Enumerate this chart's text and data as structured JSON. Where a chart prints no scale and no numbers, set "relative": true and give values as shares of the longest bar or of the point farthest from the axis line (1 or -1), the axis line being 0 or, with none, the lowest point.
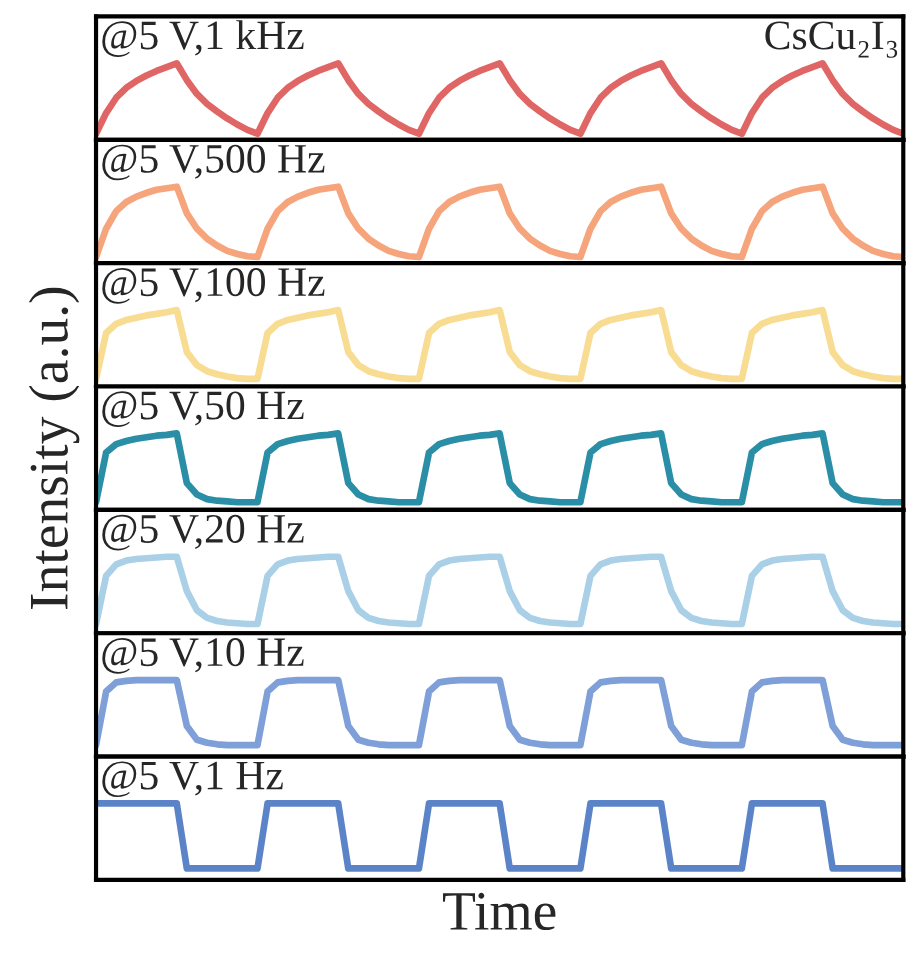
{
  "chart_data": [
    {
      "type": "line",
      "relative": true,
      "tick_labels": false,
      "annotations": [
        "@5 V,1 kHz",
        "CsCu₂I₃"
      ],
      "categories": [
        null,
        null,
        null,
        null,
        null,
        null,
        null,
        null,
        null,
        null,
        null,
        null,
        null,
        null,
        null,
        null,
        null,
        null,
        null,
        null,
        null,
        null,
        null,
        null,
        null,
        null,
        null,
        null,
        null,
        null,
        null,
        null,
        null,
        null,
        null,
        null,
        null,
        null,
        null,
        null,
        null,
        null,
        null,
        null,
        null,
        null,
        null,
        null,
        null,
        null,
        null,
        null,
        null,
        null,
        null,
        null,
        null,
        null,
        null,
        null,
        null,
        null,
        null,
        null,
        null,
        null,
        null,
        null,
        null,
        null,
        null,
        null,
        null,
        null,
        null,
        null,
        null,
        null,
        null,
        null,
        null
      ],
      "series": [
        {
          "color": "#e06666",
          "values": [
            0.08,
            0.35,
            0.55,
            0.68,
            0.77,
            0.84,
            0.9,
            0.95,
            1.0,
            0.78,
            0.6,
            0.47,
            0.37,
            0.28,
            0.2,
            0.13,
            0.08,
            0.35,
            0.55,
            0.68,
            0.77,
            0.84,
            0.9,
            0.95,
            1.0,
            0.78,
            0.6,
            0.47,
            0.37,
            0.28,
            0.2,
            0.13,
            0.08,
            0.35,
            0.55,
            0.68,
            0.77,
            0.84,
            0.9,
            0.95,
            1.0,
            0.78,
            0.6,
            0.47,
            0.37,
            0.28,
            0.2,
            0.13,
            0.08,
            0.35,
            0.55,
            0.68,
            0.77,
            0.84,
            0.9,
            0.95,
            1.0,
            0.78,
            0.6,
            0.47,
            0.37,
            0.28,
            0.2,
            0.13,
            0.08,
            0.35,
            0.55,
            0.68,
            0.77,
            0.84,
            0.9,
            0.95,
            1.0,
            0.78,
            0.6,
            0.47,
            0.37,
            0.28,
            0.2,
            0.13,
            0.08
          ]
        }
      ]
    },
    {
      "type": "line",
      "relative": true,
      "tick_labels": false,
      "annotations": [
        "@5 V,500 Hz"
      ],
      "categories": [
        null,
        null,
        null,
        null,
        null,
        null,
        null,
        null,
        null,
        null,
        null,
        null,
        null,
        null,
        null,
        null,
        null,
        null,
        null,
        null,
        null,
        null,
        null,
        null,
        null,
        null,
        null,
        null,
        null,
        null,
        null,
        null,
        null,
        null,
        null,
        null,
        null,
        null,
        null,
        null,
        null,
        null,
        null,
        null,
        null,
        null,
        null,
        null,
        null,
        null,
        null,
        null,
        null,
        null,
        null,
        null,
        null,
        null,
        null,
        null,
        null,
        null,
        null,
        null,
        null,
        null,
        null,
        null,
        null,
        null,
        null,
        null,
        null,
        null,
        null,
        null,
        null,
        null,
        null,
        null,
        null
      ],
      "series": [
        {
          "color": "#f5a47c",
          "values": [
            0.08,
            0.45,
            0.68,
            0.8,
            0.87,
            0.92,
            0.96,
            0.98,
            1.0,
            0.65,
            0.45,
            0.32,
            0.23,
            0.16,
            0.12,
            0.09,
            0.08,
            0.45,
            0.68,
            0.8,
            0.87,
            0.92,
            0.96,
            0.98,
            1.0,
            0.65,
            0.45,
            0.32,
            0.23,
            0.16,
            0.12,
            0.09,
            0.08,
            0.45,
            0.68,
            0.8,
            0.87,
            0.92,
            0.96,
            0.98,
            1.0,
            0.65,
            0.45,
            0.32,
            0.23,
            0.16,
            0.12,
            0.09,
            0.08,
            0.45,
            0.68,
            0.8,
            0.87,
            0.92,
            0.96,
            0.98,
            1.0,
            0.65,
            0.45,
            0.32,
            0.23,
            0.16,
            0.12,
            0.09,
            0.08,
            0.45,
            0.68,
            0.8,
            0.87,
            0.92,
            0.96,
            0.98,
            1.0,
            0.65,
            0.45,
            0.32,
            0.23,
            0.16,
            0.12,
            0.09,
            0.08
          ]
        }
      ]
    },
    {
      "type": "line",
      "relative": true,
      "tick_labels": false,
      "annotations": [
        "@5 V,100 Hz"
      ],
      "categories": [
        null,
        null,
        null,
        null,
        null,
        null,
        null,
        null,
        null,
        null,
        null,
        null,
        null,
        null,
        null,
        null,
        null,
        null,
        null,
        null,
        null,
        null,
        null,
        null,
        null,
        null,
        null,
        null,
        null,
        null,
        null,
        null,
        null,
        null,
        null,
        null,
        null,
        null,
        null,
        null,
        null,
        null,
        null,
        null,
        null,
        null,
        null,
        null,
        null,
        null,
        null,
        null,
        null,
        null,
        null,
        null,
        null,
        null,
        null,
        null,
        null,
        null,
        null,
        null,
        null,
        null,
        null,
        null,
        null,
        null,
        null,
        null,
        null,
        null,
        null,
        null,
        null,
        null,
        null,
        null,
        null
      ],
      "series": [
        {
          "color": "#f8dc92",
          "values": [
            0.1,
            0.7,
            0.82,
            0.87,
            0.9,
            0.93,
            0.95,
            0.97,
            1.0,
            0.45,
            0.28,
            0.2,
            0.16,
            0.13,
            0.11,
            0.1,
            0.1,
            0.7,
            0.82,
            0.87,
            0.9,
            0.93,
            0.95,
            0.97,
            1.0,
            0.45,
            0.28,
            0.2,
            0.16,
            0.13,
            0.11,
            0.1,
            0.1,
            0.7,
            0.82,
            0.87,
            0.9,
            0.93,
            0.95,
            0.97,
            1.0,
            0.45,
            0.28,
            0.2,
            0.16,
            0.13,
            0.11,
            0.1,
            0.1,
            0.7,
            0.82,
            0.87,
            0.9,
            0.93,
            0.95,
            0.97,
            1.0,
            0.45,
            0.28,
            0.2,
            0.16,
            0.13,
            0.11,
            0.1,
            0.1,
            0.7,
            0.82,
            0.87,
            0.9,
            0.93,
            0.95,
            0.97,
            1.0,
            0.45,
            0.28,
            0.2,
            0.16,
            0.13,
            0.11,
            0.1,
            0.1
          ]
        }
      ]
    },
    {
      "type": "line",
      "relative": true,
      "tick_labels": false,
      "annotations": [
        "@5 V,50 Hz"
      ],
      "categories": [
        null,
        null,
        null,
        null,
        null,
        null,
        null,
        null,
        null,
        null,
        null,
        null,
        null,
        null,
        null,
        null,
        null,
        null,
        null,
        null,
        null,
        null,
        null,
        null,
        null,
        null,
        null,
        null,
        null,
        null,
        null,
        null,
        null,
        null,
        null,
        null,
        null,
        null,
        null,
        null,
        null,
        null,
        null,
        null,
        null,
        null,
        null,
        null,
        null,
        null,
        null,
        null,
        null,
        null,
        null,
        null,
        null,
        null,
        null,
        null,
        null,
        null,
        null,
        null,
        null,
        null,
        null,
        null,
        null,
        null,
        null,
        null,
        null,
        null,
        null,
        null,
        null,
        null,
        null,
        null,
        null
      ],
      "series": [
        {
          "color": "#2a8fa6",
          "values": [
            0.1,
            0.75,
            0.86,
            0.9,
            0.93,
            0.95,
            0.97,
            0.98,
            1.0,
            0.35,
            0.2,
            0.14,
            0.12,
            0.11,
            0.1,
            0.1,
            0.1,
            0.75,
            0.86,
            0.9,
            0.93,
            0.95,
            0.97,
            0.98,
            1.0,
            0.35,
            0.2,
            0.14,
            0.12,
            0.11,
            0.1,
            0.1,
            0.1,
            0.75,
            0.86,
            0.9,
            0.93,
            0.95,
            0.97,
            0.98,
            1.0,
            0.35,
            0.2,
            0.14,
            0.12,
            0.11,
            0.1,
            0.1,
            0.1,
            0.75,
            0.86,
            0.9,
            0.93,
            0.95,
            0.97,
            0.98,
            1.0,
            0.35,
            0.2,
            0.14,
            0.12,
            0.11,
            0.1,
            0.1,
            0.1,
            0.75,
            0.86,
            0.9,
            0.93,
            0.95,
            0.97,
            0.98,
            1.0,
            0.35,
            0.2,
            0.14,
            0.12,
            0.11,
            0.1,
            0.1,
            0.1
          ]
        }
      ],
      "ylabel": "Intensity (a.u.)"
    },
    {
      "type": "line",
      "relative": true,
      "tick_labels": false,
      "annotations": [
        "@5 V,20 Hz"
      ],
      "categories": [
        null,
        null,
        null,
        null,
        null,
        null,
        null,
        null,
        null,
        null,
        null,
        null,
        null,
        null,
        null,
        null,
        null,
        null,
        null,
        null,
        null,
        null,
        null,
        null,
        null,
        null,
        null,
        null,
        null,
        null,
        null,
        null,
        null,
        null,
        null,
        null,
        null,
        null,
        null,
        null,
        null,
        null,
        null,
        null,
        null,
        null,
        null,
        null,
        null,
        null,
        null,
        null,
        null,
        null,
        null,
        null,
        null,
        null,
        null,
        null,
        null,
        null,
        null,
        null,
        null,
        null,
        null,
        null,
        null,
        null,
        null,
        null,
        null,
        null,
        null,
        null,
        null,
        null,
        null,
        null,
        null
      ],
      "series": [
        {
          "color": "#a9d0e6",
          "values": [
            0.12,
            0.75,
            0.9,
            0.95,
            0.97,
            0.98,
            0.99,
            1.0,
            1.0,
            0.55,
            0.3,
            0.2,
            0.16,
            0.14,
            0.13,
            0.12,
            0.12,
            0.75,
            0.9,
            0.95,
            0.97,
            0.98,
            0.99,
            1.0,
            1.0,
            0.55,
            0.3,
            0.2,
            0.16,
            0.14,
            0.13,
            0.12,
            0.12,
            0.75,
            0.9,
            0.95,
            0.97,
            0.98,
            0.99,
            1.0,
            1.0,
            0.55,
            0.3,
            0.2,
            0.16,
            0.14,
            0.13,
            0.12,
            0.12,
            0.75,
            0.9,
            0.95,
            0.97,
            0.98,
            0.99,
            1.0,
            1.0,
            0.55,
            0.3,
            0.2,
            0.16,
            0.14,
            0.13,
            0.12,
            0.12,
            0.75,
            0.9,
            0.95,
            0.97,
            0.98,
            0.99,
            1.0,
            1.0,
            0.55,
            0.3,
            0.2,
            0.16,
            0.14,
            0.13,
            0.12,
            0.12
          ]
        }
      ]
    },
    {
      "type": "line",
      "relative": true,
      "tick_labels": false,
      "annotations": [
        "@5 V,10 Hz"
      ],
      "categories": [
        null,
        null,
        null,
        null,
        null,
        null,
        null,
        null,
        null,
        null,
        null,
        null,
        null,
        null,
        null,
        null,
        null,
        null,
        null,
        null,
        null,
        null,
        null,
        null,
        null,
        null,
        null,
        null,
        null,
        null,
        null,
        null,
        null,
        null,
        null,
        null,
        null,
        null,
        null,
        null,
        null,
        null,
        null,
        null,
        null,
        null,
        null,
        null,
        null,
        null,
        null,
        null,
        null,
        null,
        null,
        null,
        null,
        null,
        null,
        null,
        null,
        null,
        null,
        null,
        null,
        null,
        null,
        null,
        null,
        null,
        null,
        null,
        null,
        null,
        null,
        null,
        null,
        null,
        null,
        null,
        null
      ],
      "series": [
        {
          "color": "#7f9fd8",
          "values": [
            0.15,
            0.85,
            0.97,
            0.99,
            1.0,
            1.0,
            1.0,
            1.0,
            1.0,
            0.4,
            0.22,
            0.18,
            0.16,
            0.15,
            0.15,
            0.15,
            0.15,
            0.85,
            0.97,
            0.99,
            1.0,
            1.0,
            1.0,
            1.0,
            1.0,
            0.4,
            0.22,
            0.18,
            0.16,
            0.15,
            0.15,
            0.15,
            0.15,
            0.85,
            0.97,
            0.99,
            1.0,
            1.0,
            1.0,
            1.0,
            1.0,
            0.4,
            0.22,
            0.18,
            0.16,
            0.15,
            0.15,
            0.15,
            0.15,
            0.85,
            0.97,
            0.99,
            1.0,
            1.0,
            1.0,
            1.0,
            1.0,
            0.4,
            0.22,
            0.18,
            0.16,
            0.15,
            0.15,
            0.15,
            0.15,
            0.85,
            0.97,
            0.99,
            1.0,
            1.0,
            1.0,
            1.0,
            1.0,
            0.4,
            0.22,
            0.18,
            0.16,
            0.15,
            0.15,
            0.15,
            0.15
          ]
        }
      ]
    },
    {
      "type": "line",
      "relative": true,
      "tick_labels": false,
      "annotations": [
        "@5 V,1 Hz"
      ],
      "categories": [
        null,
        null,
        null,
        null,
        null,
        null,
        null,
        null,
        null,
        null,
        null,
        null,
        null,
        null,
        null,
        null,
        null,
        null,
        null,
        null,
        null,
        null,
        null,
        null,
        null,
        null,
        null,
        null,
        null,
        null,
        null,
        null,
        null,
        null,
        null,
        null,
        null,
        null,
        null,
        null,
        null,
        null,
        null,
        null,
        null,
        null,
        null,
        null,
        null,
        null,
        null,
        null,
        null,
        null,
        null,
        null,
        null,
        null,
        null,
        null,
        null,
        null,
        null,
        null,
        null,
        null,
        null,
        null,
        null,
        null,
        null,
        null,
        null,
        null,
        null,
        null,
        null,
        null,
        null,
        null,
        null
      ],
      "series": [
        {
          "color": "#5b84c8",
          "values": [
            1.0,
            1.0,
            1.0,
            1.0,
            1.0,
            1.0,
            1.0,
            1.0,
            1.0,
            0.15,
            0.15,
            0.15,
            0.15,
            0.15,
            0.15,
            0.15,
            0.15,
            1.0,
            1.0,
            1.0,
            1.0,
            1.0,
            1.0,
            1.0,
            1.0,
            0.15,
            0.15,
            0.15,
            0.15,
            0.15,
            0.15,
            0.15,
            0.15,
            1.0,
            1.0,
            1.0,
            1.0,
            1.0,
            1.0,
            1.0,
            1.0,
            0.15,
            0.15,
            0.15,
            0.15,
            0.15,
            0.15,
            0.15,
            0.15,
            1.0,
            1.0,
            1.0,
            1.0,
            1.0,
            1.0,
            1.0,
            1.0,
            0.15,
            0.15,
            0.15,
            0.15,
            0.15,
            0.15,
            0.15,
            0.15,
            1.0,
            1.0,
            1.0,
            1.0,
            1.0,
            1.0,
            1.0,
            1.0,
            0.15,
            0.15,
            0.15,
            0.15,
            0.15,
            0.15,
            0.15,
            0.15
          ]
        }
      ],
      "xlabel": "Time"
    }
  ]
}
